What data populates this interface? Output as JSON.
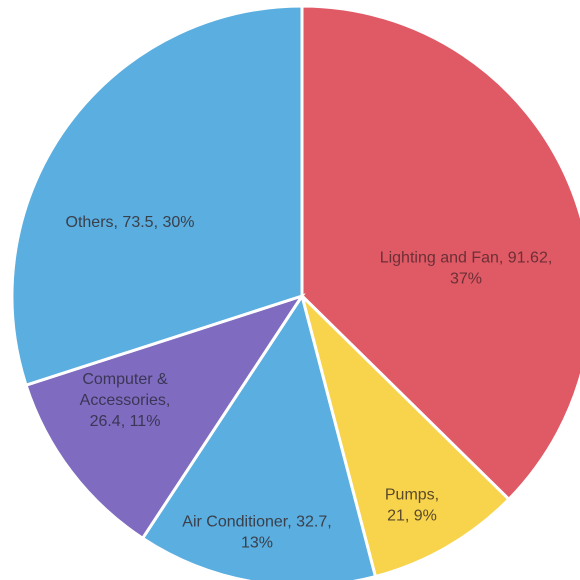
{
  "chart_data": {
    "type": "pie",
    "title": "",
    "slices": [
      {
        "label": "Lighting and Fan",
        "value": 91.62,
        "percent": "37%",
        "color": "#e05a66",
        "label_lines": [
          "Lighting and Fan, 91.62,",
          "37%"
        ],
        "label_color": "#6b2f36"
      },
      {
        "label": "Pumps",
        "value": 21,
        "percent": "9%",
        "color": "#f8d44c",
        "label_lines": [
          "Pumps,",
          "21, 9%"
        ],
        "label_color": "#5a4a2a"
      },
      {
        "label": "Air Conditioner",
        "value": 32.7,
        "percent": "13%",
        "color": "#5aaee0",
        "label_lines": [
          "Air Conditioner, 32.7,",
          "13%"
        ],
        "label_color": "#3b3f4a"
      },
      {
        "label": "Computer & Accessories",
        "value": 26.4,
        "percent": "11%",
        "color": "#7f6bbf",
        "label_lines": [
          "Computer &",
          "Accessories,",
          "26.4, 11%"
        ],
        "label_color": "#3b3656"
      },
      {
        "label": "Others",
        "value": 73.5,
        "percent": "30%",
        "color": "#5aaee0",
        "label_lines": [
          "Others, 73.5, 30%"
        ],
        "label_color": "#3b3f4a"
      }
    ]
  }
}
